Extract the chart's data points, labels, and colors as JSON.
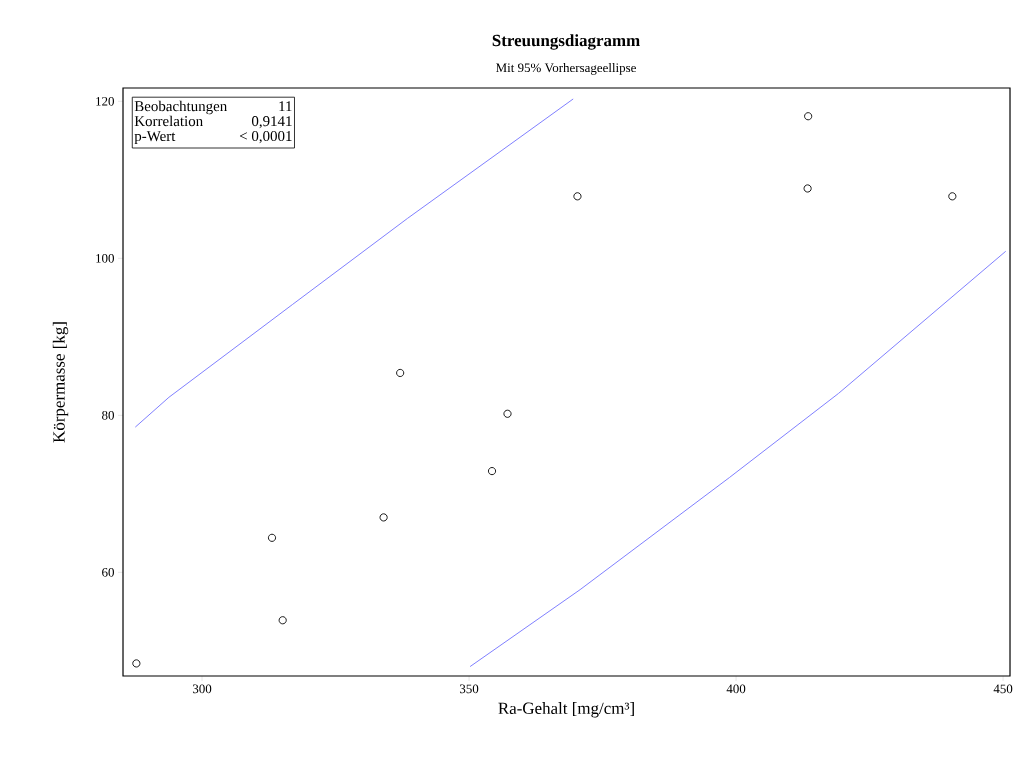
{
  "chart_data": {
    "type": "scatter",
    "title": "Streuungsdiagramm",
    "subtitle": "Mit 95% Vorhersageellipse",
    "xlabel": "Ra-Gehalt [mg/cm³]",
    "ylabel": "Körpermasse [kg]",
    "annotations": [
      "Beobachtungen",
      "11",
      "Korrelation",
      "0,9141",
      "p-Wert",
      "< 0,0001"
    ],
    "xlim": [
      285.2,
      451.3
    ],
    "ylim": [
      46.8,
      121.7
    ],
    "xticks": [
      300,
      350,
      400,
      450
    ],
    "yticks": [
      60,
      80,
      100,
      120
    ],
    "grid": false,
    "marker": "circle",
    "series": [
      {
        "color": "#000000",
        "x": [
          287.7,
          313.1,
          315.1,
          334.0,
          337.1,
          354.3,
          357.2,
          370.3,
          413.5,
          413.4,
          440.5
        ],
        "values": [
          48.4,
          64.4,
          53.9,
          67.0,
          85.4,
          72.9,
          80.2,
          107.9,
          118.1,
          108.9,
          107.9
        ]
      },
      {
        "type": "line",
        "marker": "none",
        "color": "#8080ff",
        "x": [
          287.5,
          293.8,
          316.9,
          338.5,
          369.5
        ],
        "values": [
          78.5,
          82.3,
          94.1,
          105.1,
          120.3
        ]
      },
      {
        "type": "line",
        "marker": "none",
        "color": "#8080ff",
        "x": [
          350.2,
          370.8,
          398.8,
          419.2,
          450.5
        ],
        "values": [
          48.0,
          57.8,
          72.1,
          82.8,
          100.9
        ]
      }
    ]
  }
}
